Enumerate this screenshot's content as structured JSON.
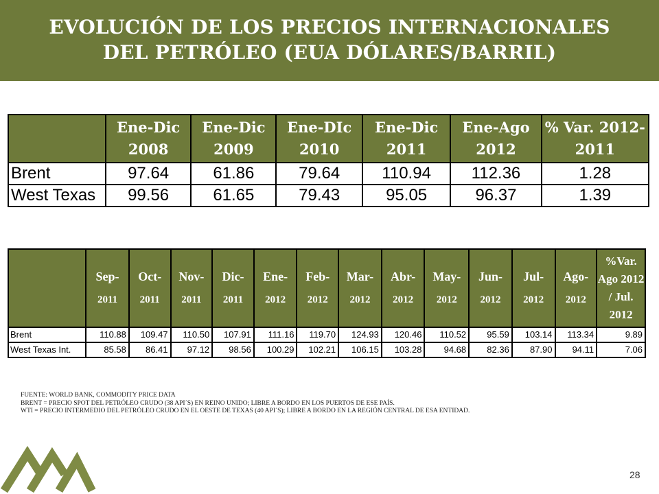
{
  "title": "EVOLUCIÓN DE LOS PRECIOS INTERNACIONALES DEL PETRÓLEO (EUA DÓLARES/BARRIL)",
  "table1": {
    "headers": [
      "",
      "Ene-Dic 2008",
      "Ene-Dic 2009",
      "Ene-DIc 2010",
      "Ene-Dic 2011",
      "Ene-Ago 2012",
      "% Var. 2012-2011"
    ],
    "rows": [
      [
        "Brent",
        "97.64",
        "61.86",
        "79.64",
        "110.94",
        "112.36",
        "1.28"
      ],
      [
        "West Texas",
        "99.56",
        "61.65",
        "79.43",
        "95.05",
        "96.37",
        "1.39"
      ]
    ]
  },
  "table2": {
    "headers": [
      {
        "top": "",
        "bottom": ""
      },
      {
        "top": "Sep-",
        "bottom": "2011"
      },
      {
        "top": "Oct-",
        "bottom": "2011"
      },
      {
        "top": "Nov-",
        "bottom": "2011"
      },
      {
        "top": "Dic-",
        "bottom": "2011"
      },
      {
        "top": "Ene-",
        "bottom": "2012"
      },
      {
        "top": "Feb-",
        "bottom": "2012"
      },
      {
        "top": "Mar-",
        "bottom": "2012"
      },
      {
        "top": "Abr-",
        "bottom": "2012"
      },
      {
        "top": "May-",
        "bottom": "2012"
      },
      {
        "top": "Jun-",
        "bottom": "2012"
      },
      {
        "top": "Jul-",
        "bottom": "2012"
      },
      {
        "top": "Ago-",
        "bottom": "2012"
      },
      {
        "top": "%Var. Ago 2012 / Jul. 2012",
        "bottom": ""
      }
    ],
    "rows": [
      [
        "Brent",
        "110.88",
        "109.47",
        "110.50",
        "107.91",
        "111.16",
        "119.70",
        "124.93",
        "120.46",
        "110.52",
        "95.59",
        "103.14",
        "113.34",
        "9.89"
      ],
      [
        "West Texas Int.",
        "85.58",
        "86.41",
        "97.12",
        "98.56",
        "100.29",
        "102.21",
        "106.15",
        "103.28",
        "94.68",
        "82.36",
        "87.90",
        "94.11",
        "7.06"
      ]
    ]
  },
  "notes": [
    "FUENTE: WORLD BANK, COMMODITY PRICE DATA",
    "BRENT = PRECIO SPOT DEL PETRÓLEO CRUDO (38 API´S) EN REINO UNIDO; LIBRE A BORDO EN LOS PUERTOS DE ESE PAÍS.",
    "WTI = PRECIO INTERMEDIO DEL PETRÓLEO CRUDO EN EL OESTE DE TEXAS (40 API´S); LIBRE A BORDO EN LA REGIÓN CENTRAL DE ESA ENTIDAD."
  ],
  "page_number": "28",
  "colors": {
    "accent": "#6e7a3a",
    "logo": "#7f8b45"
  }
}
